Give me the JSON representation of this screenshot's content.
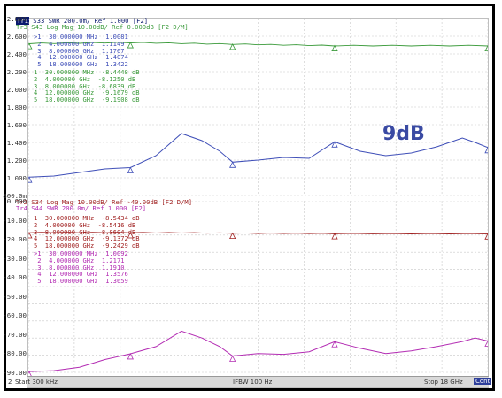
{
  "annotation": "9dB",
  "colors": {
    "blue": "#3f4fb8",
    "green": "#3a9a3a",
    "red": "#a12222",
    "magenta": "#b32cb3",
    "navy": "#0a1a6e",
    "grid": "#c8c8c8"
  },
  "top": {
    "header1": {
      "badge": "Tr1",
      "text": " S33 SWR 200.0m/ Ref 1.000 [F2]"
    },
    "header2": "Tr3 S43 Log Mag 10.00dB/ Ref 0.000dB [F2 D/M]",
    "yticks": [
      "2.800",
      "2.600",
      "2.400",
      "2.200",
      "2.000",
      "1.800",
      "1.600",
      "1.400",
      "1.200",
      "1.000",
      "800.0m"
    ],
    "markers_swr": [
      {
        "n": ">1",
        "f": "30.000000 MHz",
        "v": "1.0081"
      },
      {
        "n": " 2",
        "f": "4.000000 GHz",
        "v": "1.1149"
      },
      {
        "n": " 3",
        "f": "8.000000 GHz",
        "v": "1.1767"
      },
      {
        "n": " 4",
        "f": "12.000000 GHz",
        "v": "1.4074"
      },
      {
        "n": " 5",
        "f": "18.000000 GHz",
        "v": "1.3422"
      }
    ],
    "markers_db": [
      {
        "n": "1",
        "f": "30.000000 MHz",
        "v": "-8.4448 dB"
      },
      {
        "n": "2",
        "f": "4.000000 GHz",
        "v": "-8.1250 dB"
      },
      {
        "n": "3",
        "f": "8.000000 GHz",
        "v": "-8.6839 dB"
      },
      {
        "n": "4",
        "f": "12.000000 GHz",
        "v": "-9.1679 dB"
      },
      {
        "n": "5",
        "f": "18.000000 GHz",
        "v": "-9.1908 dB"
      }
    ]
  },
  "bottom": {
    "header1": "Tr2 S34 Log Mag 10.00dB/ Ref -40.00dB [F2 D/M]",
    "header2": "Tr4 S44 SWR 200.0m/ Ref 1.000 [F2]",
    "yticks": [
      "0.000",
      "-10.00",
      "-20.00",
      "-30.00",
      "-40.00",
      "-50.00",
      "-60.00",
      "-70.00",
      "-80.00",
      "-90.00"
    ],
    "markers_db": [
      {
        "n": "1",
        "f": "30.000000 MHz",
        "v": "-8.5434 dB"
      },
      {
        "n": "2",
        "f": "4.000000 GHz",
        "v": "-8.5416 dB"
      },
      {
        "n": "3",
        "f": "8.000000 GHz",
        "v": "-8.8604 dB"
      },
      {
        "n": "4",
        "f": "12.000000 GHz",
        "v": "-9.1372 dB"
      },
      {
        "n": "5",
        "f": "18.000000 GHz",
        "v": "-9.2429 dB"
      }
    ],
    "markers_swr": [
      {
        "n": ">1",
        "f": "30.000000 MHz",
        "v": "1.0092"
      },
      {
        "n": " 2",
        "f": "4.000000 GHz",
        "v": "1.2171"
      },
      {
        "n": " 3",
        "f": "8.000000 GHz",
        "v": "1.1910"
      },
      {
        "n": " 4",
        "f": "12.000000 GHz",
        "v": "1.3576"
      },
      {
        "n": " 5",
        "f": "18.000000 GHz",
        "v": "1.3659"
      }
    ]
  },
  "footer": {
    "channel": "2",
    "start": "Start 300 kHz",
    "ifbw": "IFBW 100 Hz",
    "stop": "Stop 18 GHz",
    "cont": "Cont"
  },
  "chart_data": [
    {
      "type": "line",
      "x_unit": "GHz",
      "xlim": [
        0.0003,
        18
      ],
      "series": [
        {
          "name": "S33 SWR",
          "ylim": [
            0.8,
            2.8
          ],
          "x": [
            0.03,
            1,
            2,
            3,
            4,
            5,
            6,
            6.8,
            7.5,
            8,
            9,
            10,
            11,
            12,
            13,
            14,
            15,
            16,
            17,
            17.5,
            18
          ],
          "y": [
            1.008,
            1.02,
            1.06,
            1.1,
            1.115,
            1.25,
            1.5,
            1.42,
            1.3,
            1.177,
            1.2,
            1.23,
            1.22,
            1.407,
            1.3,
            1.25,
            1.28,
            1.35,
            1.45,
            1.4,
            1.342
          ]
        },
        {
          "name": "S43 Log Mag",
          "ylim": [
            -60,
            0
          ],
          "x": [
            0.03,
            4,
            8,
            12,
            18
          ],
          "y": [
            -8.4448,
            -8.125,
            -8.6839,
            -9.1679,
            -9.1908
          ]
        }
      ]
    },
    {
      "type": "line",
      "x_unit": "GHz",
      "xlim": [
        0.0003,
        18
      ],
      "series": [
        {
          "name": "S34 Log Mag",
          "ylim": [
            -90,
            10
          ],
          "x": [
            0.03,
            4,
            8,
            12,
            18
          ],
          "y": [
            -8.5434,
            -8.5416,
            -8.8604,
            -9.1372,
            -9.2429
          ]
        },
        {
          "name": "S44 SWR",
          "ylim": [
            1,
            3
          ],
          "x": [
            0.03,
            1,
            2,
            3,
            4,
            5,
            6,
            6.8,
            7.5,
            8,
            9,
            10,
            11,
            12,
            13,
            14,
            15,
            16,
            17,
            17.5,
            18
          ],
          "y": [
            1.009,
            1.02,
            1.06,
            1.15,
            1.217,
            1.3,
            1.48,
            1.4,
            1.3,
            1.191,
            1.22,
            1.21,
            1.24,
            1.358,
            1.28,
            1.22,
            1.25,
            1.3,
            1.36,
            1.4,
            1.366
          ]
        }
      ]
    }
  ]
}
